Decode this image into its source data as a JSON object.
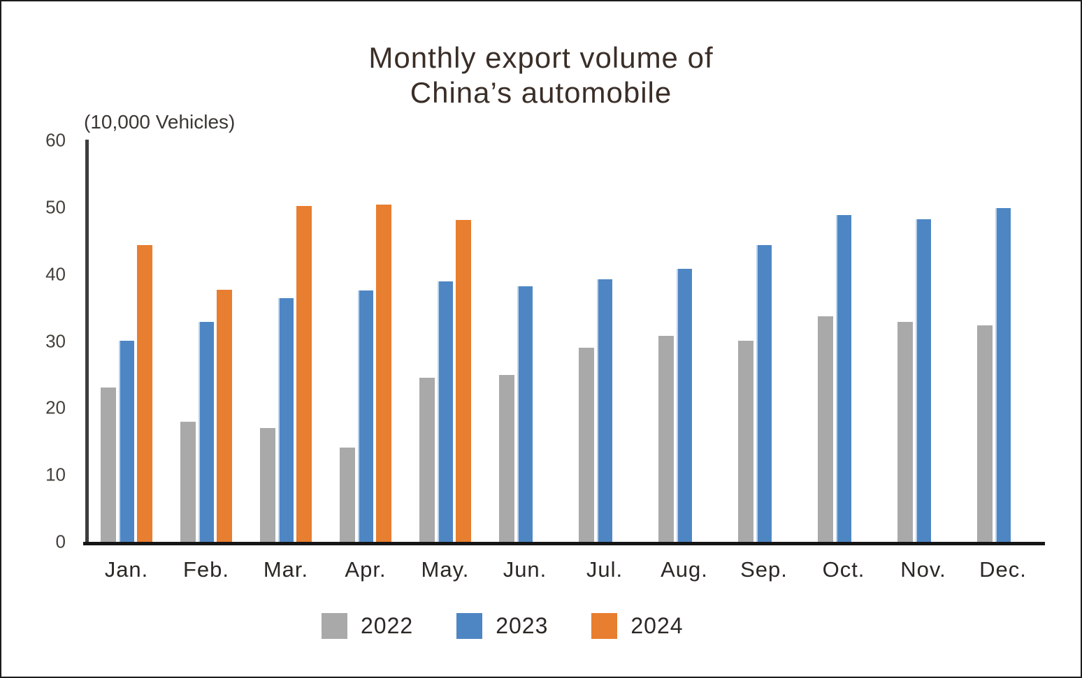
{
  "chart_data": {
    "type": "bar",
    "title_lines": [
      "Monthly export volume of",
      "China’s automobile"
    ],
    "unit_label": "(10,000 Vehicles)",
    "categories": [
      "Jan.",
      "Feb.",
      "Mar.",
      "Apr.",
      "May.",
      "Jun.",
      "Jul.",
      "Aug.",
      "Sep.",
      "Oct.",
      "Nov.",
      "Dec."
    ],
    "series": [
      {
        "name": "2022",
        "color": "#a9a9a9",
        "values": [
          23.1,
          18.0,
          17.0,
          14.1,
          24.5,
          24.9,
          29.0,
          30.8,
          30.1,
          33.7,
          32.9,
          32.4
        ]
      },
      {
        "name": "2023",
        "color": "#4e86c4",
        "values": [
          30.1,
          32.9,
          36.4,
          37.6,
          38.9,
          38.2,
          39.2,
          40.8,
          44.4,
          48.8,
          48.2,
          49.9
        ]
      },
      {
        "name": "2024",
        "color": "#e87e30",
        "values": [
          44.3,
          37.7,
          50.2,
          50.4,
          48.1,
          null,
          null,
          null,
          null,
          null,
          null,
          null
        ]
      }
    ],
    "y_axis": {
      "min": 0,
      "max": 60,
      "tick_step": 10,
      "ticks": [
        "0",
        "10",
        "20",
        "30",
        "40",
        "50",
        "60"
      ]
    },
    "legend": [
      "2022",
      "2023",
      "2024"
    ],
    "legend_position": "bottom",
    "grid": false,
    "colors": {
      "axis_line": "#3d3d3d",
      "baseline": "#151515",
      "title_text": "#3a2e27",
      "tick_text": "#44403b"
    }
  }
}
